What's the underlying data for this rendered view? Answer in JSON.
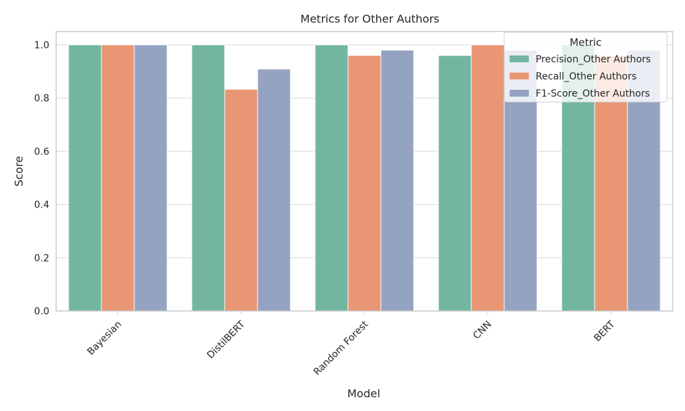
{
  "chart_data": {
    "type": "bar",
    "title": "Metrics for Other Authors",
    "xlabel": "Model",
    "ylabel": "Score",
    "categories": [
      "Bayesian",
      "DistilBERT",
      "Random Forest",
      "CNN",
      "BERT"
    ],
    "series": [
      {
        "name": "Precision_Other Authors",
        "color": "#72b6a1",
        "values": [
          1.0,
          1.0,
          1.0,
          0.96,
          1.0
        ]
      },
      {
        "name": "Recall_Other Authors",
        "color": "#e99675",
        "values": [
          1.0,
          0.833,
          0.96,
          1.0,
          0.96
        ]
      },
      {
        "name": "F1-Score_Other Authors",
        "color": "#95a3c3",
        "values": [
          1.0,
          0.909,
          0.98,
          0.98,
          0.98
        ]
      }
    ],
    "ylim": [
      0,
      1.05
    ],
    "yticks": [
      "0.0",
      "0.2",
      "0.4",
      "0.6",
      "0.8",
      "1.0"
    ],
    "grid": true,
    "legend": {
      "title": "Metric",
      "placement": "top-right"
    }
  }
}
